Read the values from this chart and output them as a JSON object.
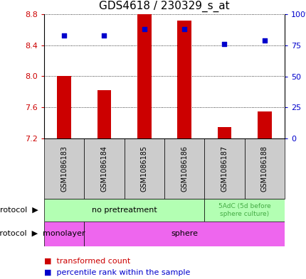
{
  "title": "GDS4618 / 230329_s_at",
  "samples": [
    "GSM1086183",
    "GSM1086184",
    "GSM1086185",
    "GSM1086186",
    "GSM1086187",
    "GSM1086188"
  ],
  "bar_values": [
    8.0,
    7.82,
    8.8,
    8.72,
    7.35,
    7.55
  ],
  "bar_bottom": 7.2,
  "percentile_values": [
    83,
    83,
    88,
    88,
    76,
    79
  ],
  "ylim": [
    7.2,
    8.8
  ],
  "yticks_left": [
    7.2,
    7.6,
    8.0,
    8.4,
    8.8
  ],
  "yticks_right": [
    0,
    25,
    50,
    75,
    100
  ],
  "ytick_right_labels": [
    "0",
    "25",
    "50",
    "75",
    "100%"
  ],
  "bar_color": "#cc0000",
  "dot_color": "#0000cc",
  "bar_width": 0.35,
  "protocol_label_1": "no pretreatment",
  "protocol_label_2": "5AdC (5d before\nsphere culture)",
  "protocol_color": "#b3ffb3",
  "protocol_dark_color": "#44aa44",
  "growth_label_1": "monolayer",
  "growth_label_2": "sphere",
  "growth_color": "#ee66ee",
  "sample_bg_color": "#cccccc",
  "legend_red_label": "transformed count",
  "legend_blue_label": "percentile rank within the sample",
  "left_tick_color": "#cc0000",
  "right_tick_color": "#0000cc",
  "row_label_color": "#000000",
  "title_fontsize": 11,
  "tick_fontsize": 8,
  "sample_fontsize": 7,
  "annot_fontsize": 8,
  "legend_fontsize": 8,
  "row_label_fontsize": 8
}
